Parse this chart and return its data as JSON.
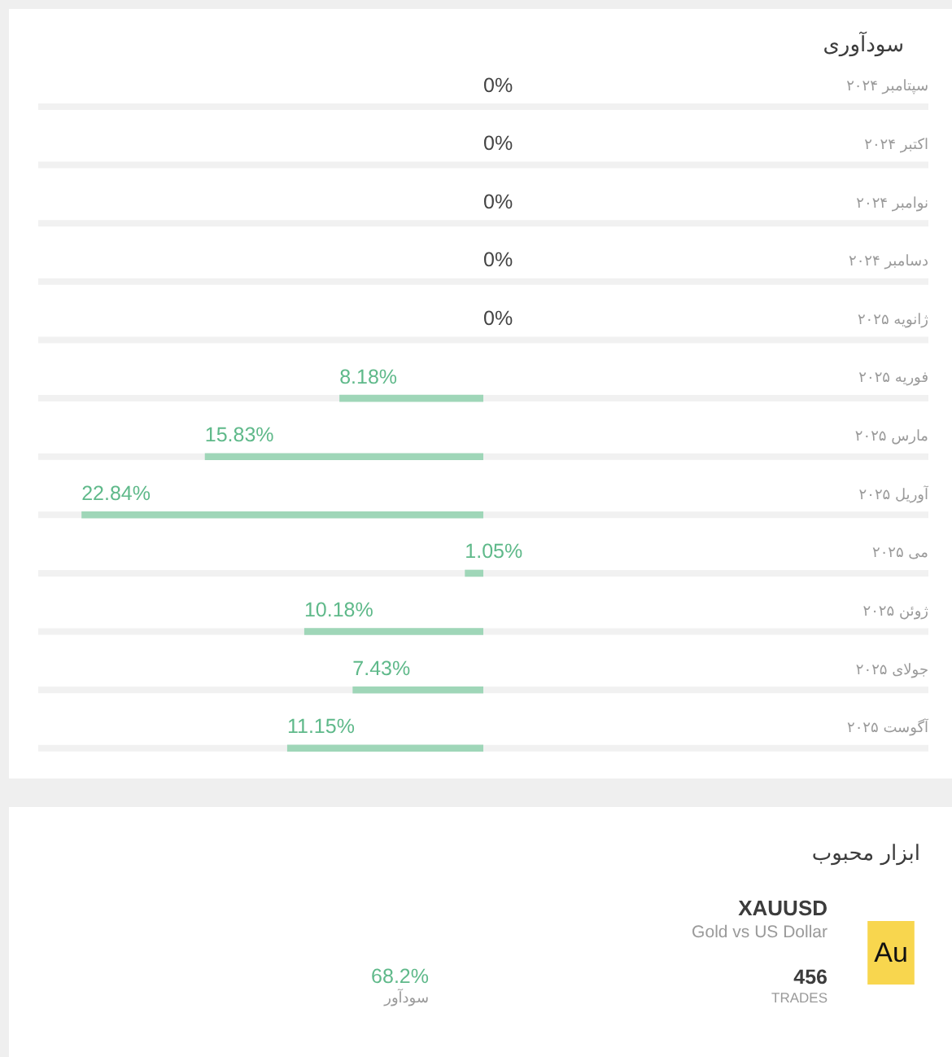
{
  "chart_data": [
    {
      "type": "bar",
      "title": "سودآوری",
      "orientation": "horizontal",
      "categories": [
        "سپتامبر ۲۰۲۴",
        "اکتبر ۲۰۲۴",
        "نوامبر ۲۰۲۴",
        "دسامبر ۲۰۲۴",
        "ژانویه ۲۰۲۵",
        "فوریه ۲۰۲۵",
        "مارس ۲۰۲۵",
        "آوریل ۲۰۲۵",
        "می ۲۰۲۵",
        "ژوئن ۲۰۲۵",
        "جولای ۲۰۲۵",
        "آگوست ۲۰۲۵"
      ],
      "values": [
        0,
        0,
        0,
        0,
        0,
        8.18,
        15.83,
        22.84,
        1.05,
        10.18,
        7.43,
        11.15
      ],
      "value_labels": [
        "0%",
        "0%",
        "0%",
        "0%",
        "0%",
        "8.18%",
        "15.83%",
        "22.84%",
        "1.05%",
        "10.18%",
        "7.43%",
        "11.15%"
      ],
      "color": "#9fd6b8",
      "xlim": [
        25.3,
        -25.3
      ],
      "tick_labels": "y"
    },
    {
      "type": "other",
      "title": "ابزار محبوب",
      "annotations": [
        "XAUUSD",
        "Gold vs US Dollar",
        "456",
        "TRADES",
        "68.2%",
        "سودآور",
        "Au"
      ]
    }
  ]
}
